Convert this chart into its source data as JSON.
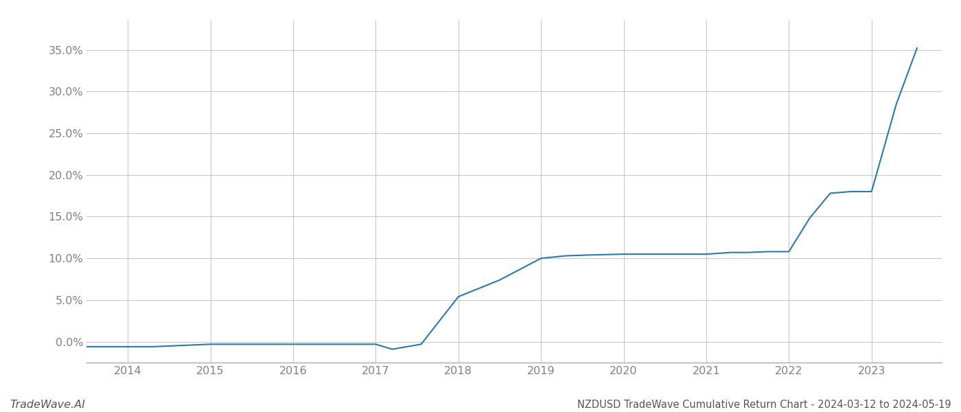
{
  "title": "NZDUSD TradeWave Cumulative Return Chart - 2024-03-12 to 2024-05-19",
  "watermark": "TradeWave.AI",
  "line_color": "#2878b5",
  "background_color": "#ffffff",
  "grid_color": "#c8c8c8",
  "x_values": [
    2013.5,
    2014.0,
    2014.3,
    2015.0,
    2015.3,
    2016.0,
    2016.3,
    2017.0,
    2017.2,
    2017.55,
    2018.0,
    2018.5,
    2019.0,
    2019.3,
    2019.6,
    2020.0,
    2020.3,
    2020.6,
    2021.0,
    2021.3,
    2021.5,
    2021.75,
    2022.0,
    2022.25,
    2022.5,
    2022.75,
    2023.0,
    2023.3,
    2023.55
  ],
  "y_values": [
    -0.006,
    -0.006,
    -0.006,
    -0.003,
    -0.003,
    -0.003,
    -0.003,
    -0.003,
    -0.009,
    -0.003,
    0.054,
    0.074,
    0.1,
    0.103,
    0.104,
    0.105,
    0.105,
    0.105,
    0.105,
    0.107,
    0.107,
    0.108,
    0.108,
    0.148,
    0.178,
    0.18,
    0.18,
    0.285,
    0.352
  ],
  "xlim": [
    2013.5,
    2023.85
  ],
  "ylim": [
    -0.025,
    0.385
  ],
  "yticks": [
    0.0,
    0.05,
    0.1,
    0.15,
    0.2,
    0.25,
    0.3,
    0.35
  ],
  "xticks": [
    2014,
    2015,
    2016,
    2017,
    2018,
    2019,
    2020,
    2021,
    2022,
    2023
  ],
  "line_width": 1.5,
  "title_fontsize": 10.5,
  "tick_fontsize": 11.5,
  "watermark_fontsize": 11.5,
  "tick_color": "#808080",
  "spine_color": "#aaaaaa"
}
